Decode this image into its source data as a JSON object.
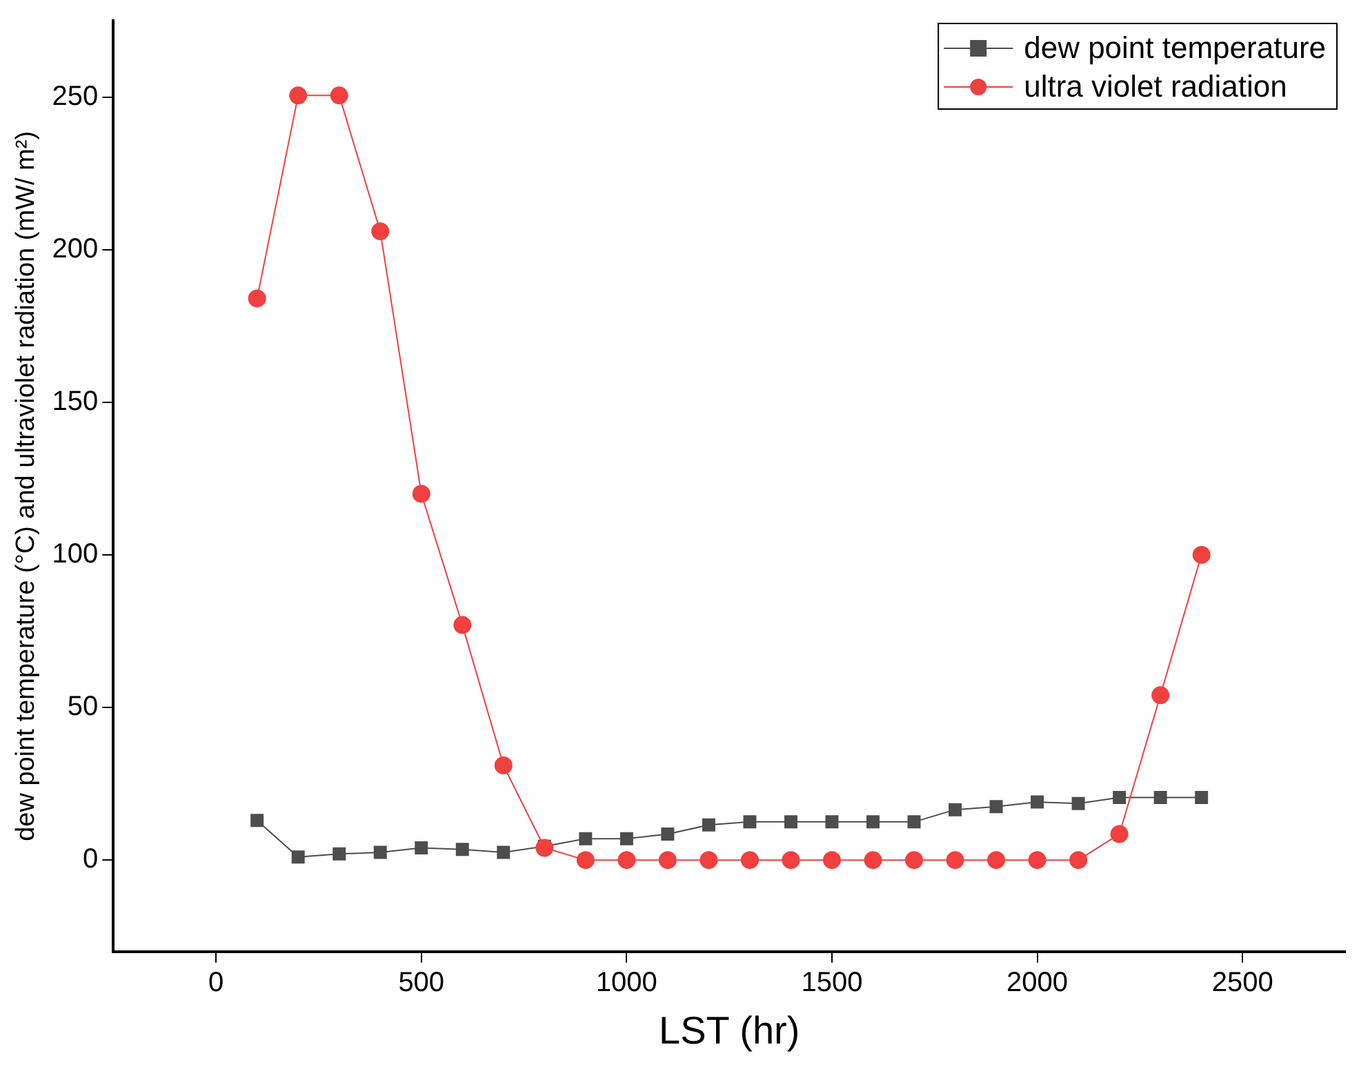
{
  "chart_data": {
    "type": "line",
    "xlabel": "LST (hr)",
    "ylabel": "dew point temperature (°C) and ultraviolet radiation (mW/ m²)",
    "x": [
      100,
      200,
      300,
      400,
      500,
      600,
      700,
      800,
      900,
      1000,
      1100,
      1200,
      1300,
      1400,
      1500,
      1600,
      1700,
      1800,
      1900,
      2000,
      2100,
      2200,
      2300,
      2400
    ],
    "series": [
      {
        "name": "dew point temperature",
        "color": "#4d4d4d",
        "marker": "square",
        "values": [
          13,
          1,
          2,
          2.5,
          4,
          3.5,
          2.5,
          4.5,
          7,
          7,
          8.5,
          11.5,
          12.5,
          12.5,
          12.5,
          12.5,
          12.5,
          16.5,
          17.5,
          19,
          18.5,
          20.5,
          20.5,
          20.5
        ]
      },
      {
        "name": "ultra violet radiation",
        "color": "#f04040",
        "marker": "circle",
        "values": [
          184,
          250.5,
          250.5,
          206,
          120,
          77,
          31,
          4,
          0,
          0,
          0,
          0,
          0,
          0,
          0,
          0,
          0,
          0,
          0,
          0,
          0,
          8.5,
          54,
          100
        ]
      }
    ],
    "xlim": [
      -250,
      2750
    ],
    "xticks": [
      0,
      500,
      1000,
      1500,
      2000,
      2500
    ],
    "ylim": [
      -30,
      275
    ],
    "yticks": [
      0,
      50,
      100,
      150,
      200,
      250
    ],
    "grid": false,
    "legend": "top right",
    "line_style": "solid"
  }
}
